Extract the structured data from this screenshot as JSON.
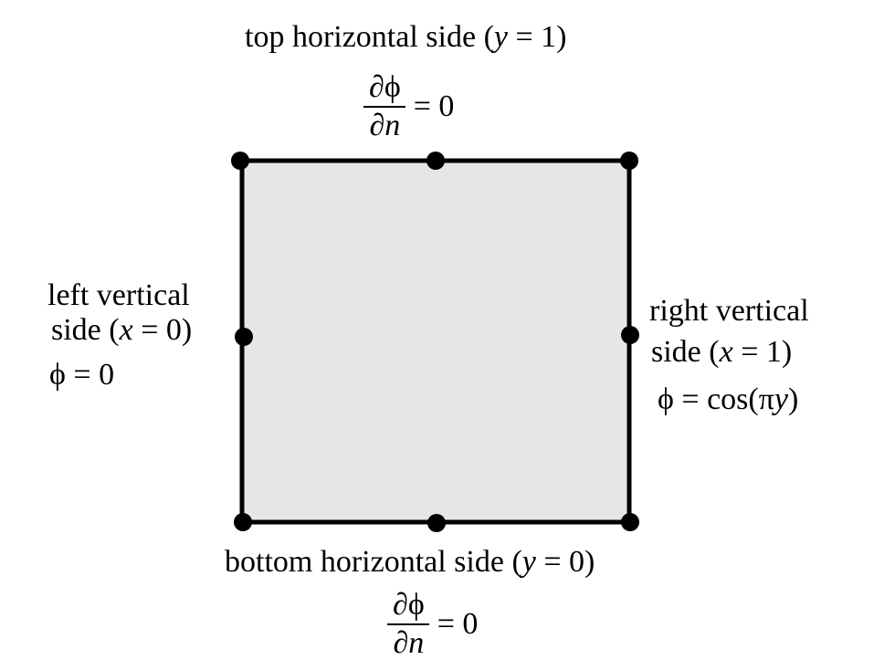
{
  "colors": {
    "domain_fill": "#e6e6e6",
    "stroke": "#000000"
  },
  "top": {
    "title": "top horizontal side",
    "cond_pre": "(",
    "cond_var": "y",
    "cond_post": " = 1)",
    "bc_num_partial": "∂",
    "bc_num_func": "ϕ",
    "bc_den_partial": "∂",
    "bc_den_var": "n",
    "bc_rhs": "= 0"
  },
  "left": {
    "line1": "left vertical",
    "line2_pre": "side (",
    "line2_var": "x",
    "line2_post": " = 0)",
    "bc": "ϕ = 0"
  },
  "right": {
    "line1": "right vertical",
    "line2_pre": "side  (",
    "line2_var": "x",
    "line2_post": " = 1)",
    "bc_pre": "ϕ = cos(π",
    "bc_var": "y",
    "bc_post": ")"
  },
  "bottom": {
    "title": "bottom horizontal side",
    "cond_pre": "(",
    "cond_var": "y",
    "cond_post": " = 0)",
    "bc_num_partial": "∂",
    "bc_num_func": "ϕ",
    "bc_den_partial": "∂",
    "bc_den_var": "n",
    "bc_rhs": "= 0"
  }
}
